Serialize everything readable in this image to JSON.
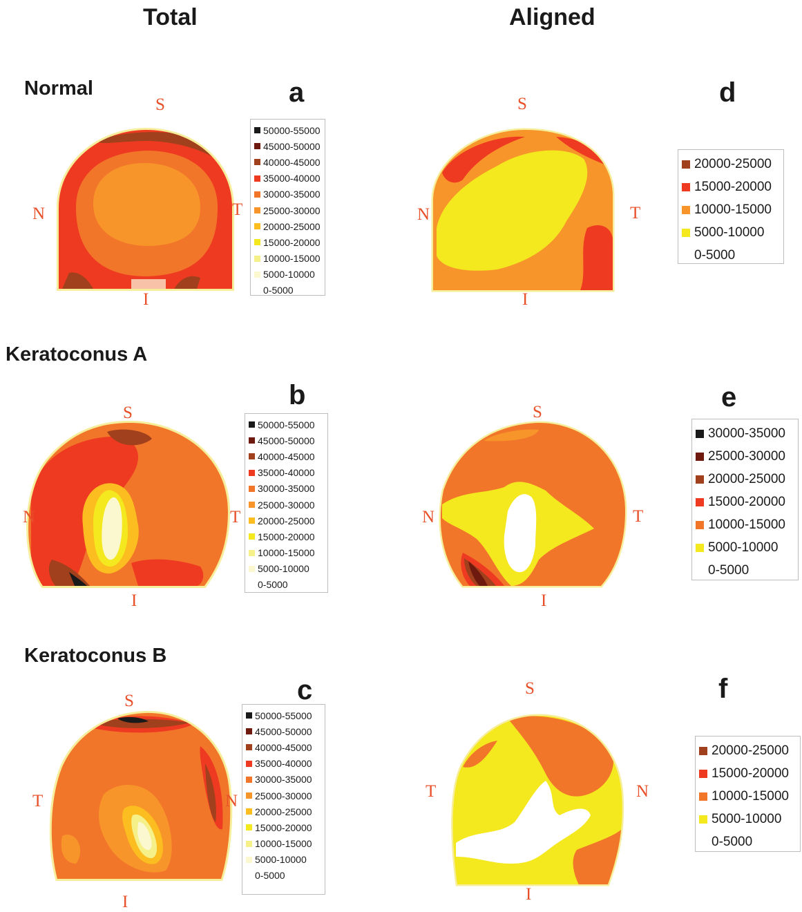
{
  "columns": {
    "total": "Total",
    "aligned": "Aligned"
  },
  "rows": {
    "normal": "Normal",
    "kerA": "Keratoconus A",
    "kerB": "Keratoconus B"
  },
  "panels": {
    "a": {
      "letter": "a",
      "sup": "S",
      "inf": "I",
      "left": "N",
      "right": "T"
    },
    "b": {
      "letter": "b",
      "sup": "S",
      "inf": "I",
      "left": "N",
      "right": "T"
    },
    "c": {
      "letter": "c",
      "sup": "S",
      "inf": "I",
      "left": "T",
      "right": "N"
    },
    "d": {
      "letter": "d",
      "sup": "S",
      "inf": "I",
      "left": "N",
      "right": "T"
    },
    "e": {
      "letter": "e",
      "sup": "S",
      "inf": "I",
      "left": "N",
      "right": "T"
    },
    "f": {
      "letter": "f",
      "sup": "S",
      "inf": "I",
      "left": "T",
      "right": "N"
    }
  },
  "legends": {
    "total": [
      {
        "label": "50000-55000",
        "color": "#1a1a1a"
      },
      {
        "label": "45000-50000",
        "color": "#6e1a0e"
      },
      {
        "label": "40000-45000",
        "color": "#a0401c"
      },
      {
        "label": "35000-40000",
        "color": "#ef3a22"
      },
      {
        "label": "30000-35000",
        "color": "#f2762a"
      },
      {
        "label": "25000-30000",
        "color": "#f7952a"
      },
      {
        "label": "20000-25000",
        "color": "#fbbd1f"
      },
      {
        "label": "15000-20000",
        "color": "#f4e81e"
      },
      {
        "label": "10000-15000",
        "color": "#f6f088"
      },
      {
        "label": "5000-10000",
        "color": "#fbf8d0"
      },
      {
        "label": "0-5000",
        "color": "#ffffff"
      }
    ],
    "d": [
      {
        "label": "20000-25000",
        "color": "#a0401c"
      },
      {
        "label": "15000-20000",
        "color": "#ef3a22"
      },
      {
        "label": "10000-15000",
        "color": "#f7952a"
      },
      {
        "label": "5000-10000",
        "color": "#f4e81e"
      },
      {
        "label": "0-5000",
        "color": "#ffffff"
      }
    ],
    "e": [
      {
        "label": "30000-35000",
        "color": "#1a1a1a"
      },
      {
        "label": "25000-30000",
        "color": "#6e1a0e"
      },
      {
        "label": "20000-25000",
        "color": "#a0401c"
      },
      {
        "label": "15000-20000",
        "color": "#ef3a22"
      },
      {
        "label": "10000-15000",
        "color": "#f2762a"
      },
      {
        "label": "5000-10000",
        "color": "#f4e81e"
      },
      {
        "label": "0-5000",
        "color": "#ffffff"
      }
    ],
    "f": [
      {
        "label": "20000-25000",
        "color": "#a0401c"
      },
      {
        "label": "15000-20000",
        "color": "#ef3a22"
      },
      {
        "label": "10000-15000",
        "color": "#f2762a"
      },
      {
        "label": "5000-10000",
        "color": "#f4e81e"
      },
      {
        "label": "0-5000",
        "color": "#ffffff"
      }
    ]
  },
  "colors": {
    "black": "#1a1a1a",
    "maroon": "#6e1a0e",
    "brown": "#a0401c",
    "red": "#ef3a22",
    "orange": "#f2762a",
    "lightOrange": "#f7952a",
    "gold": "#fbbd1f",
    "yellow": "#f4e81e",
    "paleYellow": "#f6f088",
    "cream": "#fbf8d0",
    "direction_label": "#e8502a"
  }
}
